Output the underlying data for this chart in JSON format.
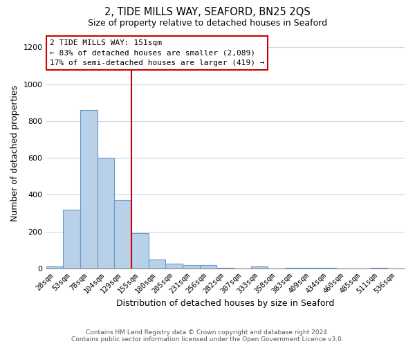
{
  "title": "2, TIDE MILLS WAY, SEAFORD, BN25 2QS",
  "subtitle": "Size of property relative to detached houses in Seaford",
  "xlabel": "Distribution of detached houses by size in Seaford",
  "ylabel": "Number of detached properties",
  "bar_labels": [
    "28sqm",
    "53sqm",
    "78sqm",
    "104sqm",
    "129sqm",
    "155sqm",
    "180sqm",
    "205sqm",
    "231sqm",
    "256sqm",
    "282sqm",
    "307sqm",
    "333sqm",
    "358sqm",
    "383sqm",
    "409sqm",
    "434sqm",
    "460sqm",
    "485sqm",
    "511sqm",
    "536sqm"
  ],
  "bar_heights": [
    10,
    320,
    860,
    600,
    370,
    190,
    50,
    25,
    20,
    20,
    5,
    0,
    10,
    0,
    5,
    5,
    5,
    0,
    0,
    5,
    0
  ],
  "bar_color": "#b8d0e8",
  "bar_edge_color": "#6699cc",
  "vline_index": 5,
  "vline_color": "#cc0000",
  "ylim": [
    0,
    1250
  ],
  "yticks": [
    0,
    200,
    400,
    600,
    800,
    1000,
    1200
  ],
  "annotation_title": "2 TIDE MILLS WAY: 151sqm",
  "annotation_line1": "← 83% of detached houses are smaller (2,089)",
  "annotation_line2": "17% of semi-detached houses are larger (419) →",
  "annotation_box_color": "#cc0000",
  "footer_line1": "Contains HM Land Registry data © Crown copyright and database right 2024.",
  "footer_line2": "Contains public sector information licensed under the Open Government Licence v3.0.",
  "background_color": "#ffffff",
  "grid_color": "#cccccc"
}
